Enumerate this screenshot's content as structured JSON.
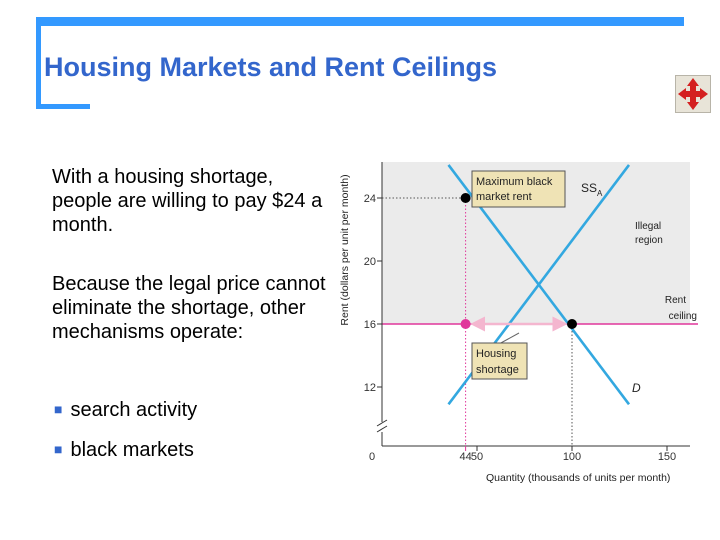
{
  "slide": {
    "title": "Housing Markets and Rent Ceilings",
    "paragraph1": "With a housing shortage, people are willing to pay $24 a month.",
    "paragraph2": "Because the legal price cannot eliminate the shortage, other mechanisms operate:",
    "bullets": [
      "search activity",
      "black markets"
    ]
  },
  "colors": {
    "frame": "#3399ff",
    "title": "#3366cc",
    "curves": "#33a8e0",
    "ceiling": "#e0379b",
    "arrow": "#f4b6cf",
    "region": "#ebebeb"
  },
  "icons": {
    "nav": "four-way-arrow-icon"
  },
  "chart_data": {
    "type": "line",
    "xlabel": "Quantity (thousands of units per month)",
    "ylabel": "Rent (dollars per unit per month)",
    "x_ticks": [
      0,
      50,
      100,
      150
    ],
    "y_ticks": [
      12,
      16,
      20,
      24
    ],
    "xlim": [
      0,
      160
    ],
    "ylim": [
      0,
      26.5
    ],
    "y_break": true,
    "series": [
      {
        "name": "SS",
        "subscript": "A",
        "points": [
          [
            35,
            26.1
          ],
          [
            130,
            10.9
          ]
        ]
      },
      {
        "name": "D",
        "points": [
          [
            35,
            10.9
          ],
          [
            130,
            26.1
          ]
        ]
      }
    ],
    "ceiling": {
      "label_line1": "Rent",
      "label_line2": "ceiling",
      "y": 16
    },
    "illegal_region": {
      "label_line1": "Illegal",
      "label_line2": "region"
    },
    "highlight_x": {
      "value": 44,
      "label": "44"
    },
    "points": [
      {
        "x": 44,
        "y": 24,
        "color": "black"
      },
      {
        "x": 44,
        "y": 16,
        "color": "pink"
      },
      {
        "x": 100,
        "y": 16,
        "color": "black"
      }
    ],
    "annotations": [
      {
        "line1": "Maximum black",
        "line2": "market rent"
      },
      {
        "line1": "Housing",
        "line2": "shortage"
      }
    ]
  }
}
